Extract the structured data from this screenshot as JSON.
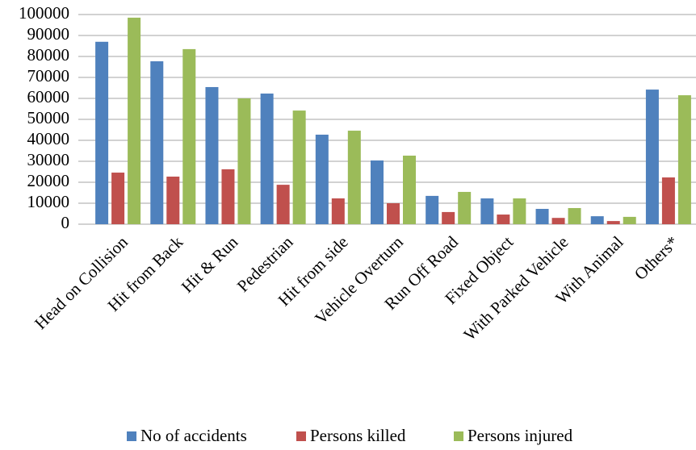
{
  "chart_data": {
    "type": "bar",
    "categories": [
      "Head on Collision",
      "Hit from Back",
      "Hit & Run",
      "Pedestrian",
      "Hit from side",
      "Vehicle Overturn",
      "Run Off Road",
      "Fixed Object",
      "With Parked Vehicle",
      "With Animal",
      "Others*"
    ],
    "series": [
      {
        "name": "No of accidents",
        "color": "#4f81bd",
        "values": [
          87000,
          77700,
          65400,
          62300,
          42700,
          30400,
          13500,
          12300,
          7300,
          3800,
          64200
        ]
      },
      {
        "name": "Persons killed",
        "color": "#c0504d",
        "values": [
          24600,
          22700,
          26200,
          18800,
          12300,
          10000,
          5800,
          4600,
          3000,
          1500,
          22300
        ]
      },
      {
        "name": "Persons injured",
        "color": "#9bbb59",
        "values": [
          98500,
          83500,
          60000,
          54200,
          44600,
          32700,
          15400,
          12300,
          7700,
          3500,
          61500
        ]
      }
    ],
    "ylim": [
      0,
      100000
    ],
    "yticks": [
      0,
      10000,
      20000,
      30000,
      40000,
      50000,
      60000,
      70000,
      80000,
      90000,
      100000
    ],
    "grid": true,
    "legend": "bottom"
  }
}
